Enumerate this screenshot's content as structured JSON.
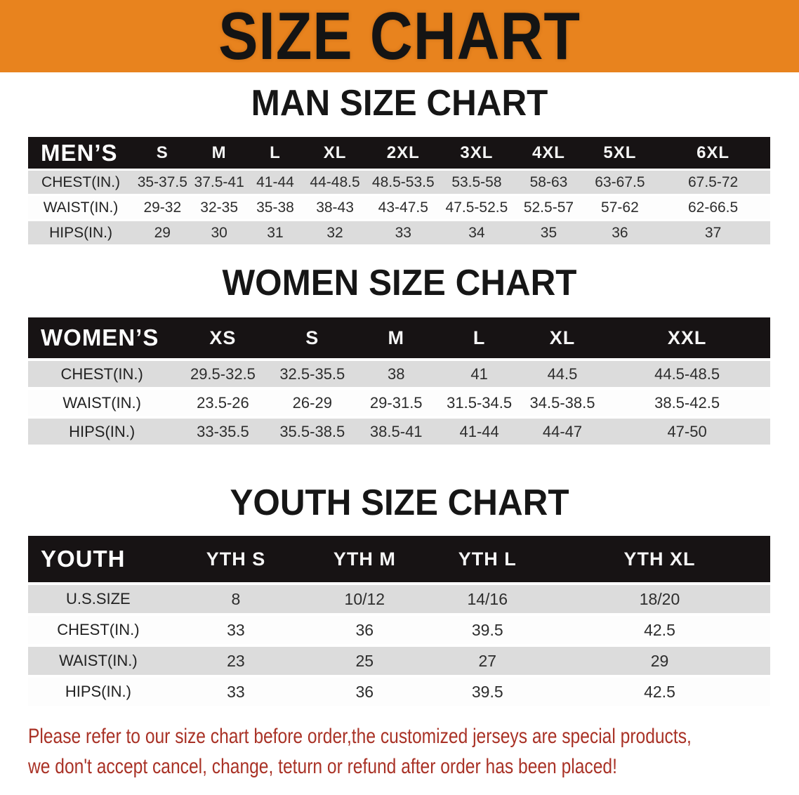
{
  "banner": {
    "title": "SIZE CHART",
    "bg_color": "#E8831E"
  },
  "colors": {
    "banner_bg": "#E8831E",
    "table_header_bar": "#171314",
    "row_stripe_gray": "#DCDCDC",
    "disclaimer_red": "#A93226"
  },
  "sections": [
    {
      "heading": "MAN SIZE CHART",
      "table": {
        "corner": "MEN’S",
        "columns": [
          "S",
          "M",
          "L",
          "XL",
          "2XL",
          "3XL",
          "4XL",
          "5XL",
          "6XL"
        ],
        "rows": [
          {
            "label": "CHEST(IN.)",
            "values": [
              "35-37.5",
              "37.5-41",
              "41-44",
              "44-48.5",
              "48.5-53.5",
              "53.5-58",
              "58-63",
              "63-67.5",
              "67.5-72"
            ]
          },
          {
            "label": "WAIST(IN.)",
            "values": [
              "29-32",
              "32-35",
              "35-38",
              "38-43",
              "43-47.5",
              "47.5-52.5",
              "52.5-57",
              "57-62",
              "62-66.5"
            ]
          },
          {
            "label": "HIPS(IN.)",
            "values": [
              "29",
              "30",
              "31",
              "32",
              "33",
              "34",
              "35",
              "36",
              "37"
            ]
          }
        ]
      }
    },
    {
      "heading": "WOMEN SIZE CHART",
      "table": {
        "corner": "WOMEN’S",
        "columns": [
          "XS",
          "S",
          "M",
          "L",
          "XL",
          "XXL"
        ],
        "rows": [
          {
            "label": "CHEST(IN.)",
            "values": [
              "29.5-32.5",
              "32.5-35.5",
              "38",
              "41",
              "44.5",
              "44.5-48.5"
            ]
          },
          {
            "label": "WAIST(IN.)",
            "values": [
              "23.5-26",
              "26-29",
              "29-31.5",
              "31.5-34.5",
              "34.5-38.5",
              "38.5-42.5"
            ]
          },
          {
            "label": "HIPS(IN.)",
            "values": [
              "33-35.5",
              "35.5-38.5",
              "38.5-41",
              "41-44",
              "44-47",
              "47-50"
            ]
          }
        ]
      }
    },
    {
      "heading": "YOUTH SIZE CHART",
      "table": {
        "corner": "YOUTH",
        "columns": [
          "YTH S",
          "YTH M",
          "YTH L",
          "YTH XL"
        ],
        "rows": [
          {
            "label": "U.S.SIZE",
            "values": [
              "8",
              "10/12",
              "14/16",
              "18/20"
            ]
          },
          {
            "label": "CHEST(IN.)",
            "values": [
              "33",
              "36",
              "39.5",
              "42.5"
            ]
          },
          {
            "label": "WAIST(IN.)",
            "values": [
              "23",
              "25",
              "27",
              "29"
            ]
          },
          {
            "label": "HIPS(IN.)",
            "values": [
              "33",
              "36",
              "39.5",
              "42.5"
            ]
          }
        ]
      }
    }
  ],
  "disclaimer": {
    "line1": "Please refer to our size chart before order,the customized jerseys are special products,",
    "line2": "we don't accept cancel, change, teturn or refund after order has been placed!"
  }
}
